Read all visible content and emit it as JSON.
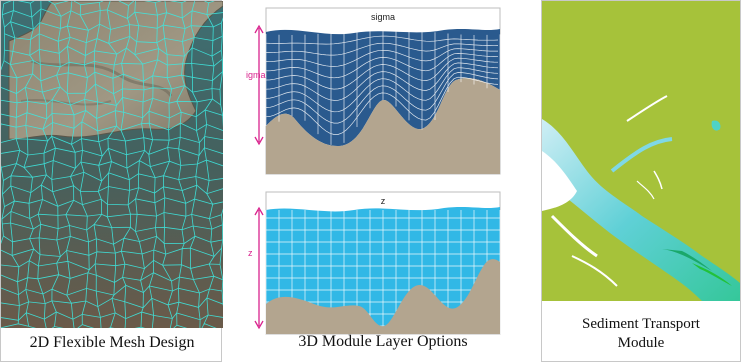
{
  "panels": {
    "mesh": {
      "caption": "2D Flexible Mesh Design"
    },
    "layers": {
      "caption": "3D Module Layer Options",
      "sigma_top_label": "sigma",
      "sigma_side_label": "igma",
      "z_top_label": "z",
      "z_side_label": "z"
    },
    "sediment": {
      "caption_line1": "Sediment Transport",
      "caption_line2": "Module"
    }
  },
  "colors": {
    "sigma_water": "#2a5a8e",
    "z_water": "#31b8e6",
    "seabed": "#b3a58f",
    "mesh_line": "#3ee8e0",
    "arrow": "#d9238d",
    "land_green": "#a6c23a"
  }
}
